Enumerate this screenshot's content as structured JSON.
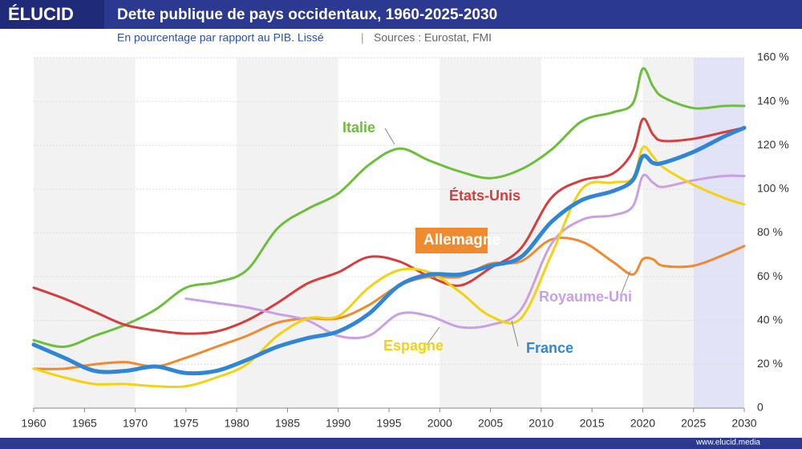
{
  "logo": "ÉLUCID",
  "footer": "www.elucid.media",
  "chart_data": {
    "type": "line",
    "title": "Dette publique de pays occidentaux, 1960-2025-2030",
    "subtitle": "En pourcentage par rapport au PIB. Lissé",
    "source": "Sources : Eurostat, FMI",
    "x": [
      1960,
      1963,
      1966,
      1969,
      1972,
      1975,
      1978,
      1981,
      1984,
      1987,
      1990,
      1993,
      1996,
      1999,
      2002,
      2005,
      2008,
      2011,
      2014,
      2017,
      2019,
      2020,
      2021,
      2022,
      2025,
      2028,
      2030
    ],
    "series": [
      {
        "name": "Italie",
        "color": "#6cbf3a",
        "values": [
          31,
          28,
          33,
          38,
          45,
          55,
          57.5,
          63,
          82,
          91,
          98,
          111,
          118.5,
          113,
          108,
          105,
          109,
          118,
          131,
          135,
          139,
          155,
          147,
          142,
          137,
          138,
          138
        ]
      },
      {
        "name": "États-Unis",
        "color": "#d63d3d",
        "values": [
          55,
          50,
          44,
          38,
          35.5,
          34,
          35,
          40,
          48,
          57,
          62,
          69,
          67,
          60,
          56,
          64,
          73,
          96,
          104,
          107,
          117,
          132,
          125,
          122,
          123,
          126,
          128
        ]
      },
      {
        "name": "Allemagne",
        "color": "#ef8a2e",
        "values": [
          18,
          18,
          20,
          21,
          19,
          23,
          28,
          33,
          39,
          41,
          41,
          47,
          56,
          60,
          60,
          66,
          67,
          77,
          76,
          67,
          61,
          68,
          68,
          65,
          65,
          70,
          74
        ]
      },
      {
        "name": "Royaume-Uni",
        "color": "#c9a0e6",
        "values": [
          null,
          null,
          null,
          null,
          null,
          50,
          48,
          46,
          43,
          40,
          33,
          33,
          43,
          42,
          37,
          38,
          45,
          75,
          86,
          88,
          92,
          106,
          103,
          101,
          104,
          106,
          106
        ]
      },
      {
        "name": "Espagne",
        "color": "#f4d20f",
        "values": [
          18,
          14,
          11,
          11,
          10,
          10,
          14,
          20,
          33,
          41,
          42,
          55,
          63,
          62,
          53,
          42,
          41,
          70,
          100,
          103,
          105,
          119,
          115,
          110,
          102,
          96,
          93
        ]
      },
      {
        "name": "France",
        "color": "#2f86d6",
        "values": [
          29,
          23,
          17,
          17,
          19,
          16,
          17,
          22,
          28,
          32,
          35,
          43,
          56,
          61,
          61,
          65,
          69,
          85,
          95,
          99,
          104,
          115,
          112,
          112,
          117,
          124,
          128
        ]
      }
    ],
    "xlim": [
      1960,
      2030
    ],
    "xticks": [
      1960,
      1965,
      1970,
      1975,
      1980,
      1985,
      1990,
      1995,
      2000,
      2005,
      2010,
      2015,
      2020,
      2025,
      2030
    ],
    "ylim": [
      0,
      160
    ],
    "yticks": [
      0,
      {
        "value": 20,
        "label": "20 %"
      },
      {
        "value": 40,
        "label": "40 %"
      },
      {
        "value": 60,
        "label": "60 %"
      },
      {
        "value": 80,
        "label": "80 %"
      },
      {
        "value": 100,
        "label": "100 %"
      },
      {
        "value": 120,
        "label": "120 %"
      },
      {
        "value": 140,
        "label": "140 %"
      },
      {
        "value": 160,
        "label": "160 %"
      }
    ],
    "grid": true
  }
}
